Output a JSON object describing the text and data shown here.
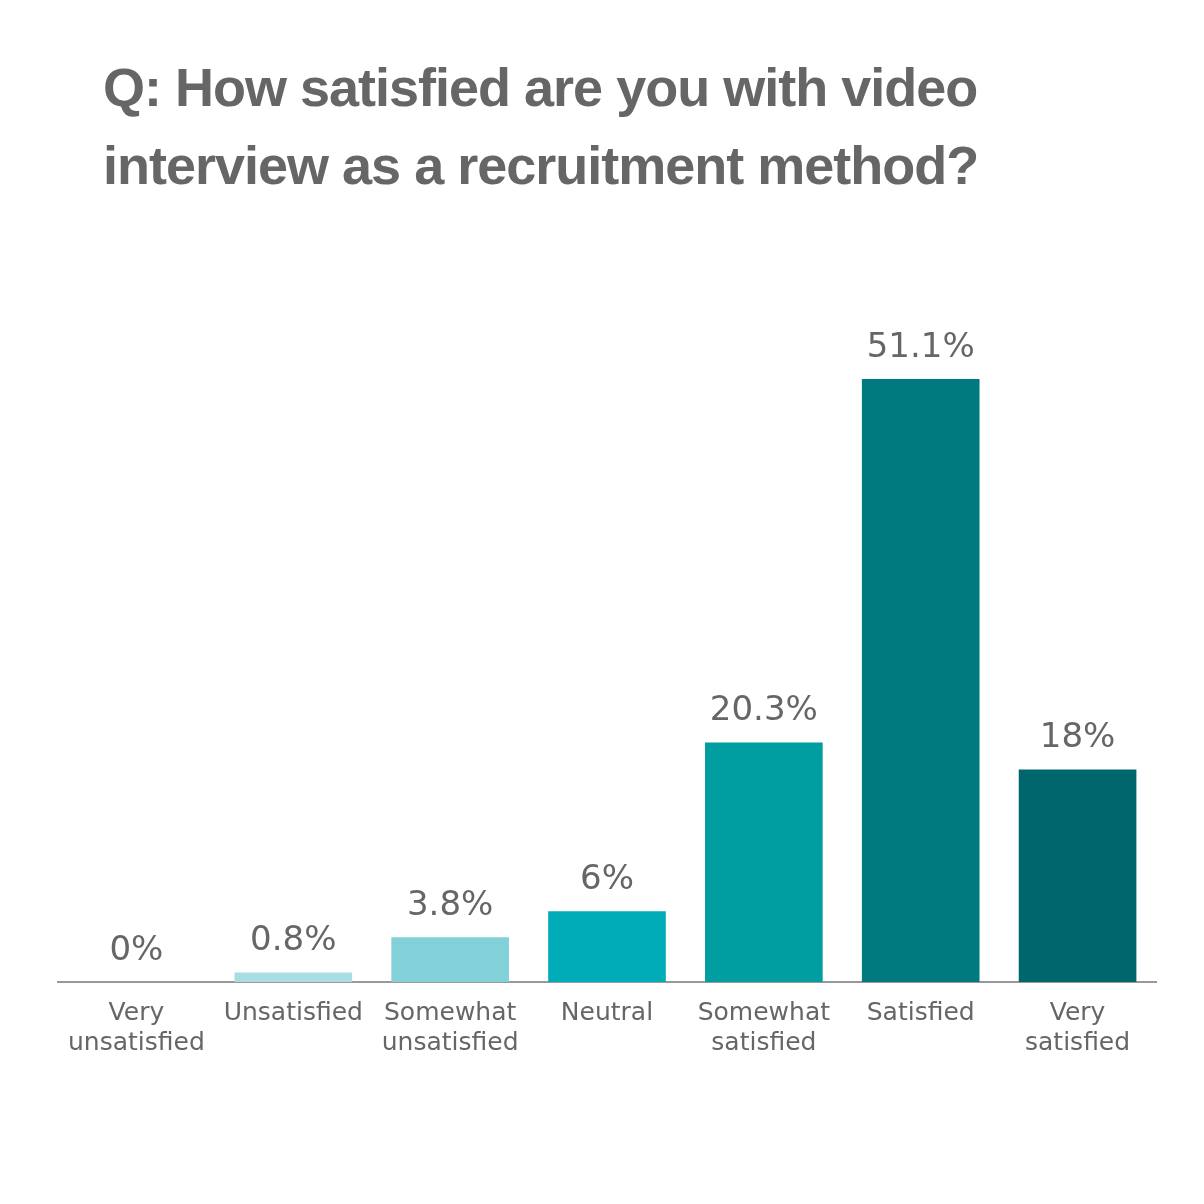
{
  "chart_data": {
    "type": "bar",
    "title": "Q: How satisfied are you with video interview as a recruitment method?",
    "categories": [
      "Very unsatisfied",
      "Unsatisfied",
      "Somewhat unsatisfied",
      "Neutral",
      "Somewhat satisfied",
      "Satisfied",
      "Very satisfied"
    ],
    "values": [
      0,
      0.8,
      3.8,
      6,
      20.3,
      51.1,
      18
    ],
    "colors": [
      "#a8dde4",
      "#a8dde4",
      "#82d0d8",
      "#00acb8",
      "#009ea0",
      "#007a7f",
      "#00666e"
    ],
    "value_labels": [
      "0%",
      "0.8%",
      "3.8%",
      "6%",
      "20.3%",
      "51.1%",
      "18%"
    ],
    "legend": false,
    "grid": false
  }
}
